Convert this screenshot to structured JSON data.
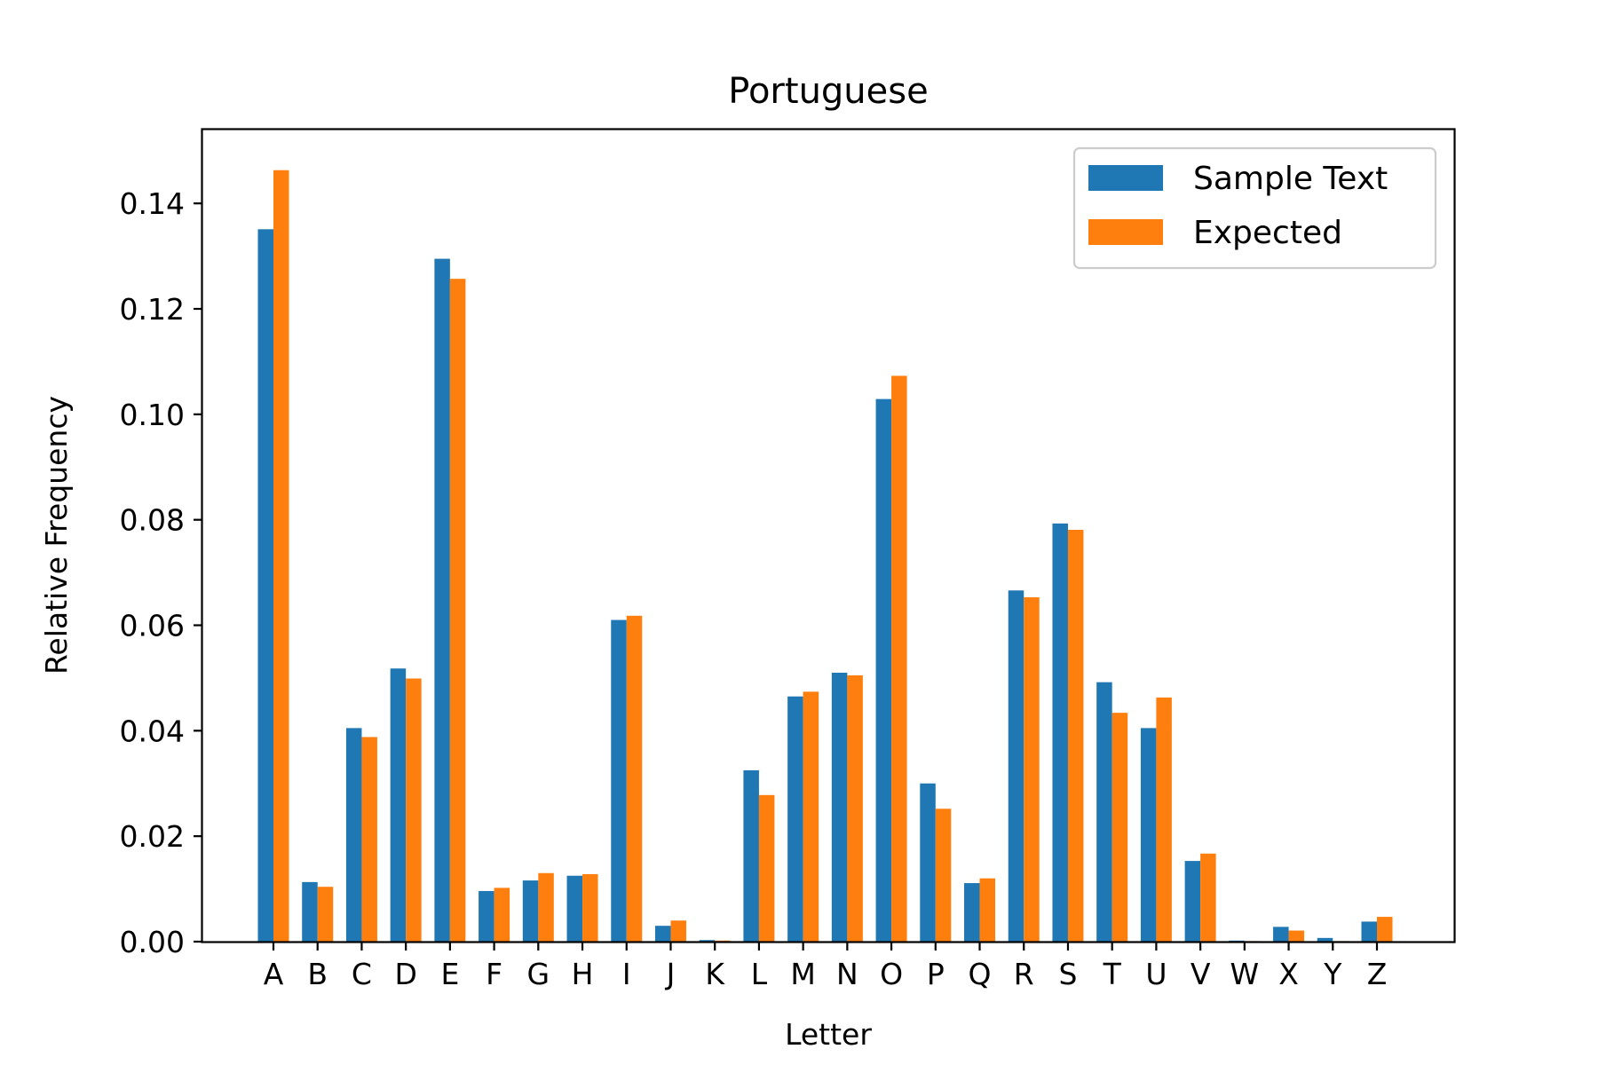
{
  "chart_data": {
    "type": "bar",
    "title": "Portuguese",
    "xlabel": "Letter",
    "ylabel": "Relative Frequency",
    "categories": [
      "A",
      "B",
      "C",
      "D",
      "E",
      "F",
      "G",
      "H",
      "I",
      "J",
      "K",
      "L",
      "M",
      "N",
      "O",
      "P",
      "Q",
      "R",
      "S",
      "T",
      "U",
      "V",
      "W",
      "X",
      "Y",
      "Z"
    ],
    "ylim": [
      0,
      0.154
    ],
    "yticks": [
      0.0,
      0.02,
      0.04,
      0.06,
      0.08,
      0.1,
      0.12,
      0.14
    ],
    "ytick_labels": [
      "0.00",
      "0.02",
      "0.04",
      "0.06",
      "0.08",
      "0.10",
      "0.12",
      "0.14"
    ],
    "grid": false,
    "legend_position": "top-right",
    "series": [
      {
        "name": "Sample Text",
        "color": "#1f77b4",
        "values": [
          0.1351,
          0.0113,
          0.0405,
          0.0518,
          0.1295,
          0.0096,
          0.0116,
          0.0125,
          0.061,
          0.003,
          0.0003,
          0.0325,
          0.0465,
          0.051,
          0.1029,
          0.03,
          0.0111,
          0.0666,
          0.0793,
          0.0492,
          0.0405,
          0.0153,
          0.0002,
          0.0028,
          0.0007,
          0.0038
        ]
      },
      {
        "name": "Expected",
        "color": "#ff7f0e",
        "values": [
          0.1463,
          0.0104,
          0.0388,
          0.0499,
          0.1257,
          0.0102,
          0.013,
          0.0128,
          0.0618,
          0.004,
          0.0002,
          0.0278,
          0.0474,
          0.0505,
          0.1073,
          0.0252,
          0.012,
          0.0653,
          0.0781,
          0.0434,
          0.0463,
          0.0167,
          0.0001,
          0.0021,
          0.0001,
          0.0047
        ]
      }
    ]
  }
}
